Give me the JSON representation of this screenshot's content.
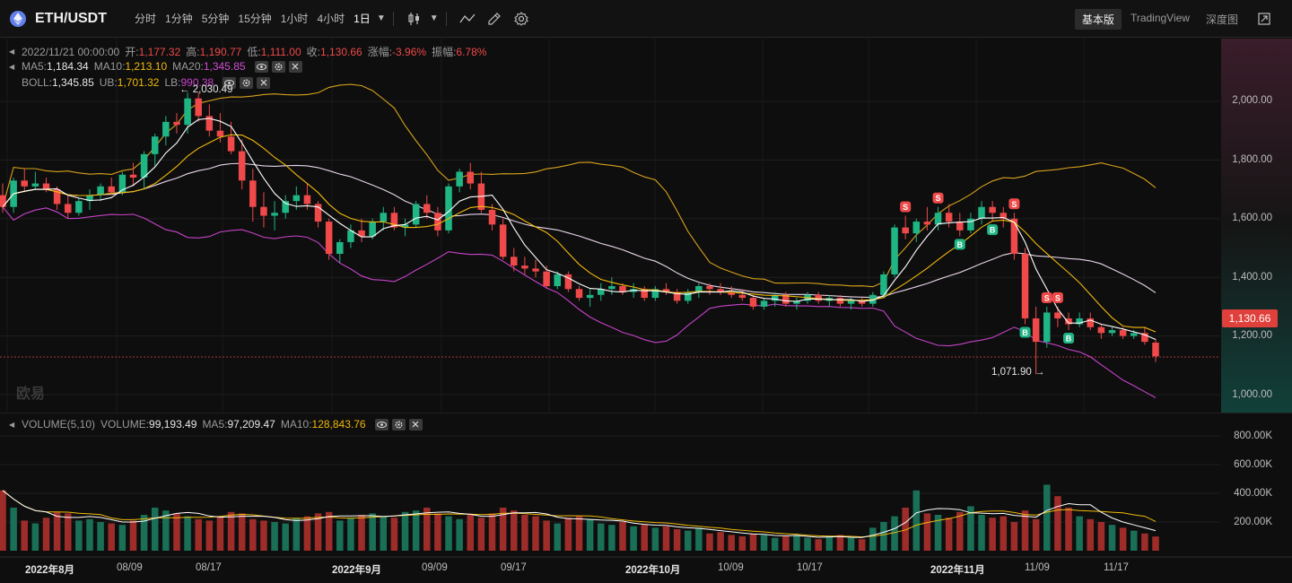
{
  "header": {
    "symbol": "ETH/USDT",
    "intervals": [
      "分时",
      "1分钟",
      "5分钟",
      "15分钟",
      "1小时",
      "4小时",
      "1日"
    ],
    "active_interval": "1日",
    "views": [
      "基本版",
      "TradingView",
      "深度图"
    ],
    "active_view": "基本版",
    "icons": [
      "candle-type-icon",
      "line-tool-icon",
      "draw-tool-icon",
      "settings-icon",
      "fullscreen-icon"
    ]
  },
  "ohlc_legend": {
    "date": "2022/11/21 00:00:00",
    "open_label": "开:",
    "open": "1,177.32",
    "high_label": "高:",
    "high": "1,190.77",
    "low_label": "低:",
    "low": "1,111.00",
    "close_label": "收:",
    "close": "1,130.66",
    "change_label": "涨幅:",
    "change": "-3.96%",
    "amplitude_label": "振幅:",
    "amplitude": "6.78%"
  },
  "ma_legend": {
    "ma5_label": "MA5:",
    "ma5": "1,184.34",
    "ma10_label": "MA10:",
    "ma10": "1,213.10",
    "ma20_label": "MA20:",
    "ma20": "1,345.85"
  },
  "boll_legend": {
    "boll_label": "BOLL:",
    "boll": "1,345.85",
    "ub_label": "UB:",
    "ub": "1,701.32",
    "lb_label": "LB:",
    "lb": "990.38"
  },
  "volume_legend": {
    "title": "VOLUME(5,10)",
    "volume_label": "VOLUME:",
    "volume": "99,193.49",
    "ma5_label": "MA5:",
    "ma5": "97,209.47",
    "ma10_label": "MA10:",
    "ma10": "128,843.76"
  },
  "price_axis": [
    "2,000.00",
    "1,800.00",
    "1,600.00",
    "1,400.00",
    "1,200.00",
    "1,000.00"
  ],
  "last_price": "1,130.66",
  "volume_axis": [
    "800.00K",
    "600.00K",
    "400.00K",
    "200.00K"
  ],
  "date_axis": [
    {
      "label": "2022年8月",
      "bold": true
    },
    {
      "label": "08/09",
      "bold": false
    },
    {
      "label": "08/17",
      "bold": false
    },
    {
      "label": "2022年9月",
      "bold": true
    },
    {
      "label": "09/09",
      "bold": false
    },
    {
      "label": "09/17",
      "bold": false
    },
    {
      "label": "2022年10月",
      "bold": true
    },
    {
      "label": "10/09",
      "bold": false
    },
    {
      "label": "10/17",
      "bold": false
    },
    {
      "label": "2022年11月",
      "bold": true
    },
    {
      "label": "11/09",
      "bold": false
    },
    {
      "label": "11/17",
      "bold": false
    }
  ],
  "annotations": {
    "high_marker": "← 2,030.49",
    "low_marker": "1,071.90 →"
  },
  "watermark": "欧易",
  "colors": {
    "up": "#1fb585",
    "down": "#ef4949",
    "ma5": "#ffffff",
    "ma10": "#f0b90b",
    "boll_lower": "#c643c9",
    "background": "#0e0e0e"
  },
  "chart_data": {
    "type": "candlestick",
    "interval": "1日",
    "ylim": [
      980,
      2080
    ],
    "candles_ohlc": [
      [
        1680,
        1720,
        1620,
        1640
      ],
      [
        1640,
        1740,
        1620,
        1730
      ],
      [
        1730,
        1770,
        1690,
        1710
      ],
      [
        1710,
        1760,
        1700,
        1720
      ],
      [
        1720,
        1740,
        1690,
        1700
      ],
      [
        1700,
        1710,
        1630,
        1650
      ],
      [
        1650,
        1680,
        1600,
        1620
      ],
      [
        1620,
        1670,
        1610,
        1660
      ],
      [
        1660,
        1700,
        1630,
        1680
      ],
      [
        1680,
        1720,
        1660,
        1710
      ],
      [
        1710,
        1740,
        1680,
        1690
      ],
      [
        1690,
        1760,
        1680,
        1750
      ],
      [
        1750,
        1790,
        1710,
        1740
      ],
      [
        1740,
        1830,
        1700,
        1820
      ],
      [
        1820,
        1890,
        1780,
        1880
      ],
      [
        1880,
        1950,
        1850,
        1930
      ],
      [
        1930,
        1960,
        1890,
        1920
      ],
      [
        1920,
        2030,
        1890,
        2010
      ],
      [
        2010,
        2030,
        1930,
        1950
      ],
      [
        1950,
        1990,
        1880,
        1900
      ],
      [
        1900,
        1960,
        1860,
        1880
      ],
      [
        1880,
        1930,
        1820,
        1830
      ],
      [
        1830,
        1870,
        1700,
        1730
      ],
      [
        1730,
        1770,
        1590,
        1640
      ],
      [
        1640,
        1690,
        1570,
        1610
      ],
      [
        1610,
        1660,
        1560,
        1620
      ],
      [
        1620,
        1680,
        1600,
        1660
      ],
      [
        1660,
        1710,
        1630,
        1680
      ],
      [
        1680,
        1720,
        1630,
        1650
      ],
      [
        1650,
        1660,
        1570,
        1590
      ],
      [
        1590,
        1600,
        1460,
        1480
      ],
      [
        1480,
        1530,
        1450,
        1520
      ],
      [
        1520,
        1580,
        1500,
        1560
      ],
      [
        1560,
        1600,
        1520,
        1540
      ],
      [
        1540,
        1600,
        1530,
        1590
      ],
      [
        1590,
        1640,
        1560,
        1620
      ],
      [
        1620,
        1640,
        1560,
        1570
      ],
      [
        1570,
        1600,
        1540,
        1580
      ],
      [
        1580,
        1660,
        1570,
        1650
      ],
      [
        1650,
        1680,
        1600,
        1620
      ],
      [
        1620,
        1640,
        1540,
        1560
      ],
      [
        1560,
        1720,
        1550,
        1710
      ],
      [
        1710,
        1770,
        1690,
        1760
      ],
      [
        1760,
        1790,
        1700,
        1720
      ],
      [
        1720,
        1760,
        1620,
        1630
      ],
      [
        1630,
        1650,
        1560,
        1580
      ],
      [
        1580,
        1600,
        1460,
        1470
      ],
      [
        1470,
        1500,
        1420,
        1440
      ],
      [
        1440,
        1470,
        1410,
        1430
      ],
      [
        1430,
        1460,
        1400,
        1420
      ],
      [
        1420,
        1440,
        1360,
        1370
      ],
      [
        1370,
        1420,
        1360,
        1410
      ],
      [
        1410,
        1420,
        1350,
        1360
      ],
      [
        1360,
        1370,
        1320,
        1330
      ],
      [
        1330,
        1360,
        1300,
        1340
      ],
      [
        1340,
        1380,
        1320,
        1360
      ],
      [
        1360,
        1400,
        1340,
        1370
      ],
      [
        1370,
        1380,
        1340,
        1350
      ],
      [
        1350,
        1380,
        1330,
        1360
      ],
      [
        1360,
        1370,
        1320,
        1330
      ],
      [
        1330,
        1370,
        1320,
        1360
      ],
      [
        1360,
        1380,
        1340,
        1350
      ],
      [
        1350,
        1360,
        1310,
        1320
      ],
      [
        1320,
        1360,
        1310,
        1350
      ],
      [
        1350,
        1380,
        1330,
        1370
      ],
      [
        1370,
        1380,
        1340,
        1360
      ],
      [
        1360,
        1380,
        1340,
        1350
      ],
      [
        1350,
        1370,
        1330,
        1340
      ],
      [
        1340,
        1360,
        1320,
        1330
      ],
      [
        1330,
        1340,
        1290,
        1300
      ],
      [
        1300,
        1330,
        1290,
        1320
      ],
      [
        1320,
        1350,
        1300,
        1340
      ],
      [
        1340,
        1350,
        1300,
        1310
      ],
      [
        1310,
        1330,
        1290,
        1320
      ],
      [
        1320,
        1350,
        1310,
        1340
      ],
      [
        1340,
        1350,
        1310,
        1320
      ],
      [
        1320,
        1340,
        1300,
        1330
      ],
      [
        1330,
        1340,
        1300,
        1310
      ],
      [
        1310,
        1330,
        1290,
        1320
      ],
      [
        1320,
        1330,
        1300,
        1310
      ],
      [
        1310,
        1350,
        1300,
        1340
      ],
      [
        1340,
        1420,
        1330,
        1410
      ],
      [
        1410,
        1580,
        1400,
        1570
      ],
      [
        1570,
        1610,
        1530,
        1550
      ],
      [
        1550,
        1600,
        1520,
        1590
      ],
      [
        1590,
        1640,
        1560,
        1580
      ],
      [
        1580,
        1640,
        1560,
        1620
      ],
      [
        1620,
        1650,
        1570,
        1590
      ],
      [
        1590,
        1620,
        1540,
        1560
      ],
      [
        1560,
        1620,
        1550,
        1600
      ],
      [
        1600,
        1660,
        1580,
        1640
      ],
      [
        1640,
        1660,
        1590,
        1620
      ],
      [
        1620,
        1640,
        1570,
        1600
      ],
      [
        1600,
        1620,
        1460,
        1480
      ],
      [
        1480,
        1500,
        1240,
        1260
      ],
      [
        1260,
        1300,
        1070,
        1180
      ],
      [
        1180,
        1300,
        1160,
        1280
      ],
      [
        1280,
        1300,
        1230,
        1260
      ],
      [
        1260,
        1280,
        1220,
        1240
      ],
      [
        1240,
        1280,
        1230,
        1260
      ],
      [
        1260,
        1280,
        1220,
        1230
      ],
      [
        1230,
        1240,
        1190,
        1210
      ],
      [
        1210,
        1230,
        1200,
        1220
      ],
      [
        1220,
        1230,
        1190,
        1200
      ],
      [
        1200,
        1220,
        1190,
        1210
      ],
      [
        1210,
        1230,
        1170,
        1180
      ],
      [
        1177.32,
        1190.77,
        1111,
        1130.66
      ]
    ],
    "volume": [
      420,
      300,
      210,
      190,
      230,
      270,
      260,
      210,
      220,
      200,
      190,
      180,
      210,
      250,
      300,
      280,
      260,
      240,
      220,
      210,
      240,
      270,
      260,
      220,
      210,
      200,
      190,
      230,
      240,
      260,
      270,
      210,
      230,
      250,
      260,
      240,
      230,
      270,
      280,
      300,
      260,
      240,
      220,
      250,
      230,
      260,
      300,
      280,
      250,
      240,
      210,
      190,
      230,
      240,
      220,
      190,
      180,
      200,
      170,
      180,
      160,
      170,
      150,
      140,
      160,
      120,
      130,
      110,
      100,
      120,
      110,
      90,
      100,
      110,
      90,
      80,
      100,
      110,
      90,
      80,
      160,
      200,
      240,
      300,
      420,
      260,
      250,
      230,
      270,
      310,
      250,
      230,
      240,
      200,
      280,
      220,
      460,
      380,
      300,
      240,
      220,
      200,
      180,
      160,
      140,
      120,
      99
    ],
    "signals": [
      {
        "index": 83,
        "type": "S"
      },
      {
        "index": 86,
        "type": "S"
      },
      {
        "index": 88,
        "type": "B"
      },
      {
        "index": 91,
        "type": "B"
      },
      {
        "index": 93,
        "type": "S"
      },
      {
        "index": 94,
        "type": "B"
      },
      {
        "index": 96,
        "type": "S"
      },
      {
        "index": 97,
        "type": "S"
      },
      {
        "index": 98,
        "type": "B"
      }
    ]
  }
}
